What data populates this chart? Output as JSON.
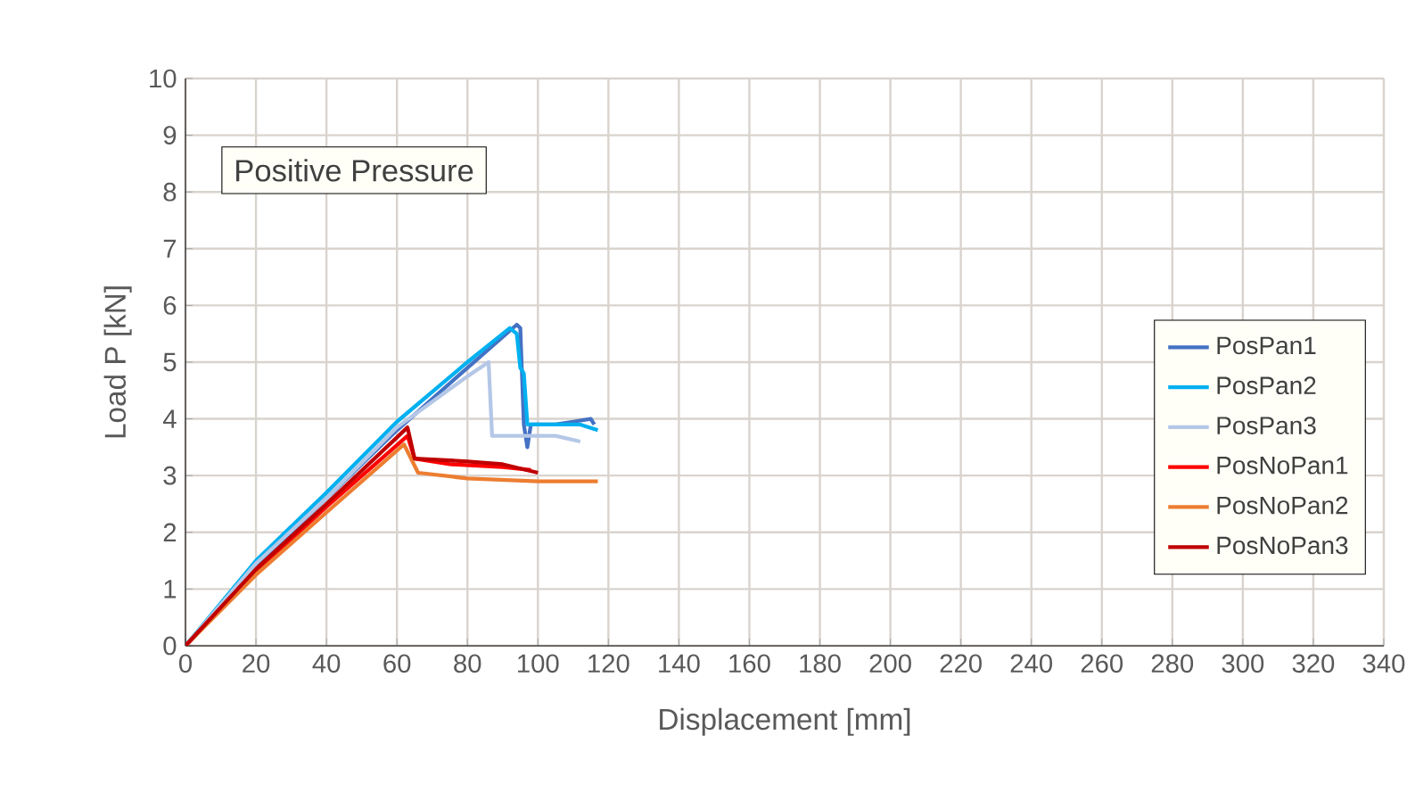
{
  "chart_data": {
    "type": "line",
    "title": "Positive Pressure",
    "xlabel": "Displacement [mm]",
    "ylabel": "Load P [kN]",
    "xlim": [
      0,
      340
    ],
    "xticks": [
      0,
      20,
      40,
      60,
      80,
      100,
      120,
      140,
      160,
      180,
      200,
      220,
      240,
      260,
      280,
      300,
      320,
      340
    ],
    "ylim": [
      0,
      10
    ],
    "yticks": [
      0,
      1,
      2,
      3,
      4,
      5,
      6,
      7,
      8,
      9,
      10
    ],
    "grid": true,
    "legend": "right",
    "marker": "none",
    "line_style": "solid",
    "series": [
      {
        "name": "PosPan1",
        "color": "#4472c4",
        "x": [
          0,
          10,
          20,
          40,
          60,
          80,
          94,
          95,
          96,
          97,
          98,
          105,
          110,
          115,
          116
        ],
        "values": [
          0,
          0.7,
          1.4,
          2.6,
          3.8,
          4.9,
          5.66,
          5.6,
          3.9,
          3.5,
          3.9,
          3.9,
          3.95,
          4.0,
          3.9
        ]
      },
      {
        "name": "PosPan2",
        "color": "#00b0f0",
        "x": [
          0,
          10,
          20,
          40,
          60,
          80,
          92,
          94,
          95,
          96,
          97,
          105,
          112,
          117
        ],
        "values": [
          0,
          0.75,
          1.5,
          2.7,
          3.95,
          5.0,
          5.6,
          5.5,
          4.9,
          4.8,
          3.9,
          3.9,
          3.9,
          3.8
        ]
      },
      {
        "name": "PosPan3",
        "color": "#b4c7e7",
        "x": [
          0,
          20,
          40,
          60,
          80,
          86,
          87,
          95,
          105,
          112
        ],
        "values": [
          0,
          1.45,
          2.6,
          3.85,
          4.75,
          5.0,
          3.7,
          3.7,
          3.7,
          3.6
        ]
      },
      {
        "name": "PosNoPan1",
        "color": "#ff0000",
        "x": [
          0,
          20,
          40,
          63,
          65,
          75,
          90,
          98
        ],
        "values": [
          0,
          1.3,
          2.45,
          3.7,
          3.3,
          3.2,
          3.15,
          3.1
        ]
      },
      {
        "name": "PosNoPan2",
        "color": "#ed7d31",
        "x": [
          0,
          20,
          40,
          62,
          66,
          80,
          100,
          117
        ],
        "values": [
          0,
          1.25,
          2.35,
          3.55,
          3.05,
          2.95,
          2.9,
          2.9
        ]
      },
      {
        "name": "PosNoPan3",
        "color": "#c00000",
        "x": [
          0,
          20,
          40,
          63,
          65,
          80,
          90,
          100
        ],
        "values": [
          0,
          1.35,
          2.5,
          3.85,
          3.3,
          3.25,
          3.2,
          3.05
        ]
      }
    ]
  }
}
